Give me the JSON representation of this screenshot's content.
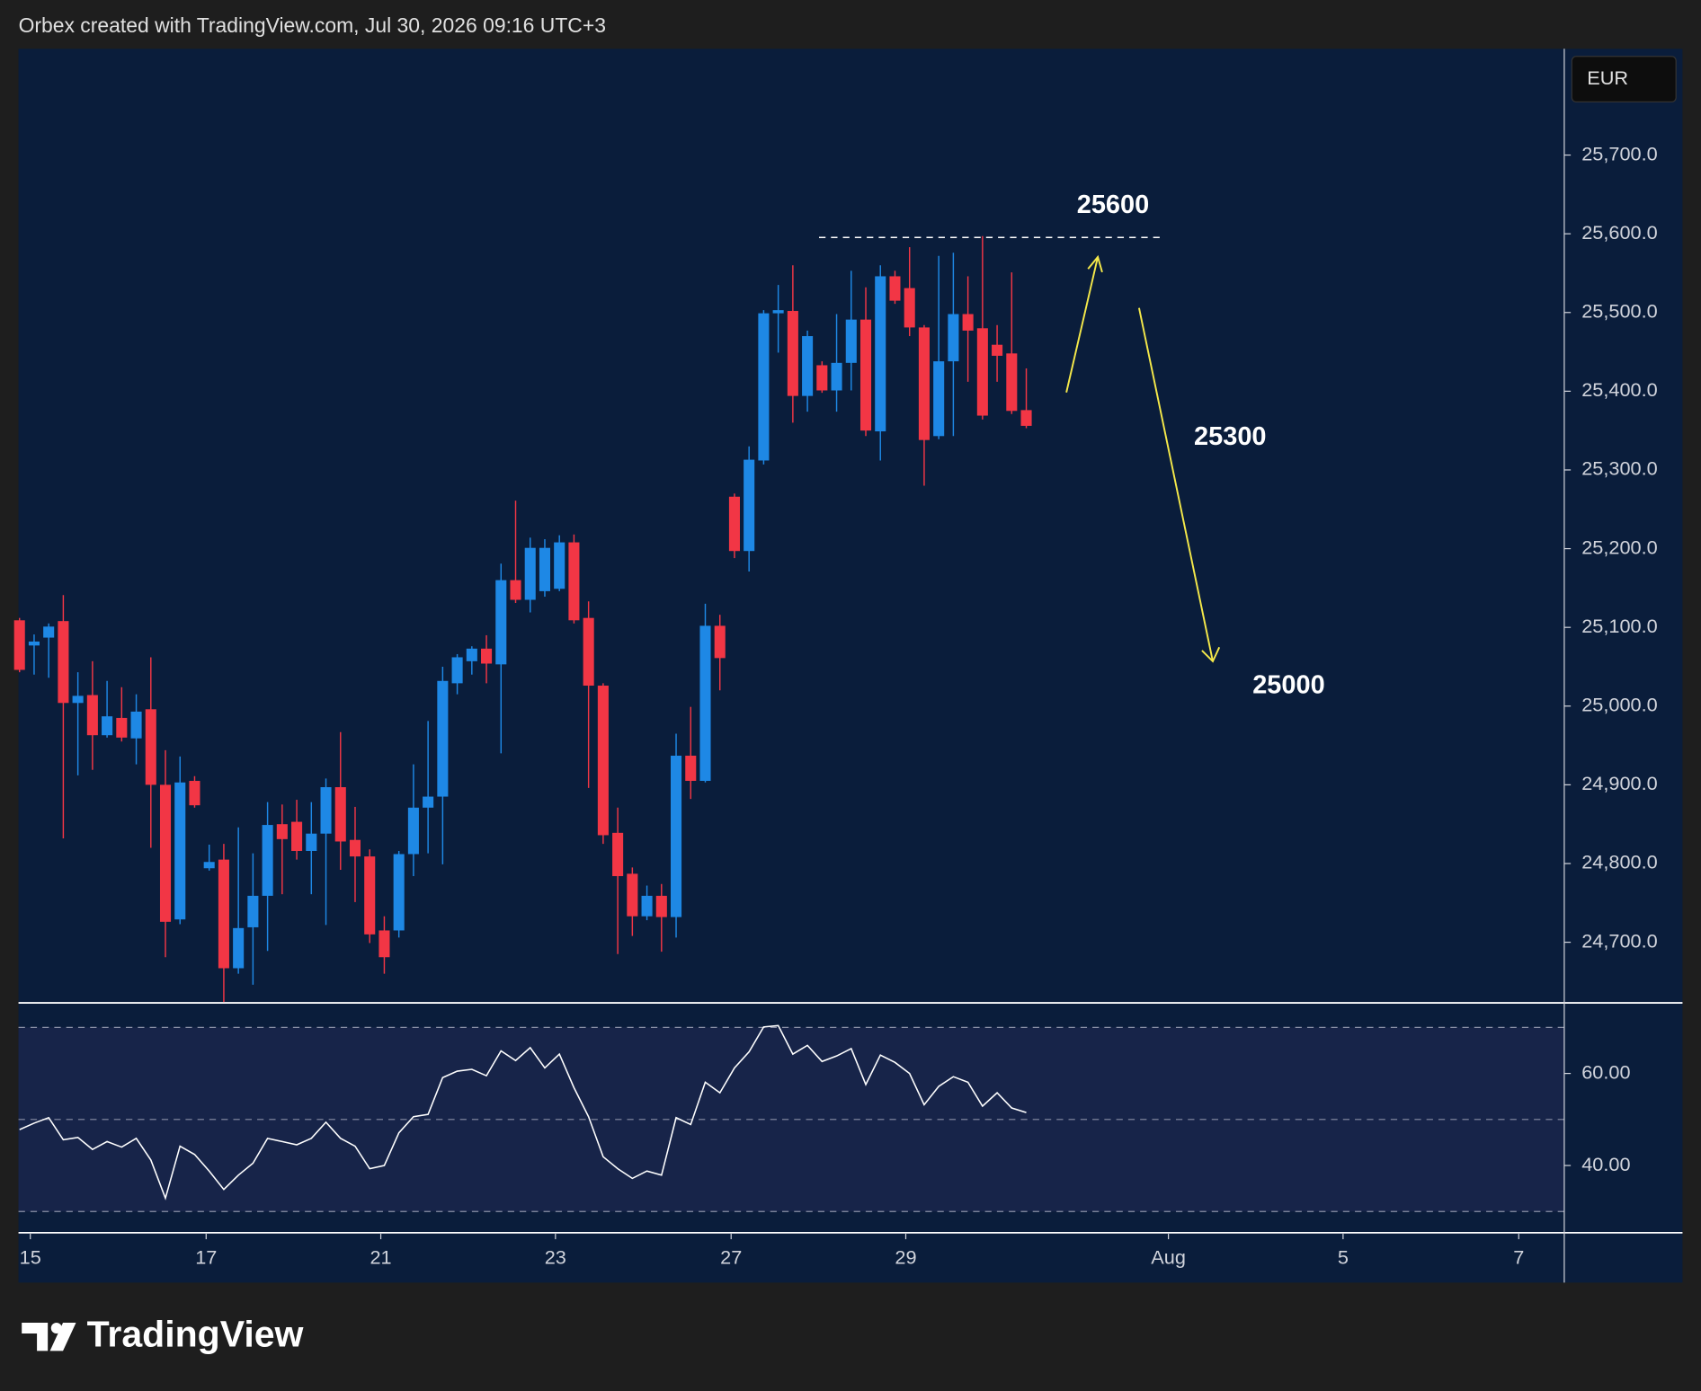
{
  "header": {
    "text": "Orbex created with TradingView.com, Jul 30, 2026 09:16 UTC+3",
    "currency": "EUR"
  },
  "brand": "TradingView",
  "chart_data": [
    {
      "type": "candlestick",
      "annotations": [
        "25600",
        "25300",
        "25000"
      ],
      "up_color": "#1e88e5",
      "down_color": "#f23645",
      "open": [
        25109,
        25077,
        25087,
        25108,
        25004,
        25014,
        24963,
        24985,
        24959,
        24996,
        24900,
        24729,
        24905,
        24794,
        24805,
        24667,
        24719,
        24759,
        24850,
        24853,
        24816,
        24838,
        24897,
        24830,
        24809,
        24715,
        24715,
        24812,
        24871,
        24885,
        25029,
        25057,
        25073,
        25053,
        25160,
        25135,
        25146,
        25149,
        25208,
        25112,
        25026,
        24839,
        24787,
        24733,
        24759,
        24732,
        24937,
        24905,
        25102,
        25266,
        25197,
        25312,
        25499,
        25502,
        25394,
        25433,
        25401,
        25436,
        25491,
        25349,
        25546,
        25531,
        25481,
        25343,
        25438,
        25498,
        25480,
        25459,
        25448,
        25376
      ],
      "high": [
        25112,
        25091,
        25105,
        25141,
        25043,
        25057,
        25032,
        25024,
        25015,
        25062,
        24944,
        24936,
        24911,
        24824,
        24825,
        24846,
        24813,
        24878,
        24875,
        24881,
        24878,
        24908,
        24967,
        24872,
        24818,
        24733,
        24816,
        24926,
        24981,
        25050,
        25066,
        25076,
        25090,
        25181,
        25261,
        25214,
        25212,
        25217,
        25218,
        25133,
        25029,
        24871,
        24795,
        24772,
        24774,
        24965,
        24999,
        25130,
        25116,
        25270,
        25330,
        25503,
        25535,
        25560,
        25477,
        25438,
        25498,
        25553,
        25532,
        25560,
        25553,
        25583,
        25484,
        25572,
        25576,
        25546,
        25597,
        25484,
        25551,
        25429
      ],
      "low": [
        25043,
        25040,
        25036,
        24832,
        24912,
        24919,
        24960,
        24955,
        24926,
        24820,
        24681,
        24723,
        24871,
        24791,
        24624,
        24660,
        24646,
        24689,
        24761,
        24805,
        24761,
        24722,
        24792,
        24751,
        24699,
        24660,
        24706,
        24784,
        24813,
        24799,
        25015,
        25040,
        25029,
        24940,
        25131,
        25119,
        25139,
        25146,
        25105,
        24896,
        24825,
        24685,
        24708,
        24728,
        24688,
        24706,
        24882,
        24903,
        25020,
        25188,
        25171,
        25307,
        25449,
        25360,
        25374,
        25398,
        25374,
        25401,
        25343,
        25312,
        25511,
        25470,
        25280,
        25339,
        25343,
        25412,
        25364,
        25412,
        25371,
        25353
      ],
      "close": [
        25046,
        25082,
        25101,
        25004,
        25013,
        24963,
        24987,
        24960,
        24993,
        24900,
        24726,
        24903,
        24874,
        24802,
        24667,
        24718,
        24759,
        24849,
        24831,
        24816,
        24838,
        24897,
        24828,
        24809,
        24710,
        24681,
        24812,
        24871,
        24885,
        25032,
        25062,
        25073,
        25054,
        25160,
        25135,
        25201,
        25201,
        25208,
        25109,
        25026,
        24836,
        24784,
        24733,
        24759,
        24732,
        24937,
        24905,
        25102,
        25061,
        25197,
        25313,
        25499,
        25503,
        25394,
        25470,
        25401,
        25436,
        25491,
        25350,
        25546,
        25515,
        25481,
        25338,
        25438,
        25498,
        25477,
        25369,
        25445,
        25375,
        25356
      ],
      "xlim": [
        -0.07,
        105.87
      ],
      "xticks": [
        {
          "value": 0.74,
          "label": "15"
        },
        {
          "value": 12.79,
          "label": "17"
        },
        {
          "value": 24.76,
          "label": "21"
        },
        {
          "value": 36.73,
          "label": "23"
        },
        {
          "value": 48.77,
          "label": "27"
        },
        {
          "value": 60.74,
          "label": "29"
        },
        {
          "value": 78.74,
          "label": "Aug"
        },
        {
          "value": 90.71,
          "label": "5"
        },
        {
          "value": 102.75,
          "label": "7"
        }
      ],
      "ylim": [
        24623,
        25835
      ],
      "yticks": [
        {
          "value": 24700,
          "label": "24,700.0"
        },
        {
          "value": 24800,
          "label": "24,800.0"
        },
        {
          "value": 24900,
          "label": "24,900.0"
        },
        {
          "value": 25000,
          "label": "25,000.0"
        },
        {
          "value": 25100,
          "label": "25,100.0"
        },
        {
          "value": 25200,
          "label": "25,200.0"
        },
        {
          "value": 25300,
          "label": "25,300.0"
        },
        {
          "value": 25400,
          "label": "25,400.0"
        },
        {
          "value": 25500,
          "label": "25,500.0"
        },
        {
          "value": 25600,
          "label": "25,600.0"
        },
        {
          "value": 25700,
          "label": "25,700.0"
        }
      ]
    },
    {
      "type": "line",
      "color": "#ffffff",
      "values": [
        47.8,
        49.2,
        50.4,
        45.6,
        46.1,
        43.5,
        45.2,
        44.0,
        45.9,
        41.2,
        32.9,
        44.2,
        42.4,
        38.8,
        34.8,
        37.9,
        40.5,
        45.9,
        45.2,
        44.5,
        45.9,
        49.4,
        45.9,
        44.2,
        39.3,
        40.0,
        47.1,
        50.6,
        51.1,
        59.1,
        60.5,
        60.9,
        59.5,
        64.9,
        62.8,
        65.6,
        61.2,
        64.2,
        56.9,
        50.6,
        41.9,
        39.3,
        37.2,
        38.8,
        37.9,
        50.4,
        48.9,
        58.1,
        55.8,
        61.2,
        64.7,
        70.1,
        70.4,
        64.2,
        66.1,
        62.6,
        63.8,
        65.4,
        57.6,
        64.0,
        62.4,
        60.0,
        53.2,
        57.2,
        59.3,
        58.1,
        52.9,
        55.8,
        52.5,
        51.5
      ],
      "levels": [
        30,
        50,
        70
      ],
      "ylim": [
        25.4,
        75.1
      ],
      "yticks": [
        {
          "value": 40,
          "label": "40.00"
        },
        {
          "value": 60,
          "label": "60.00"
        }
      ]
    }
  ]
}
